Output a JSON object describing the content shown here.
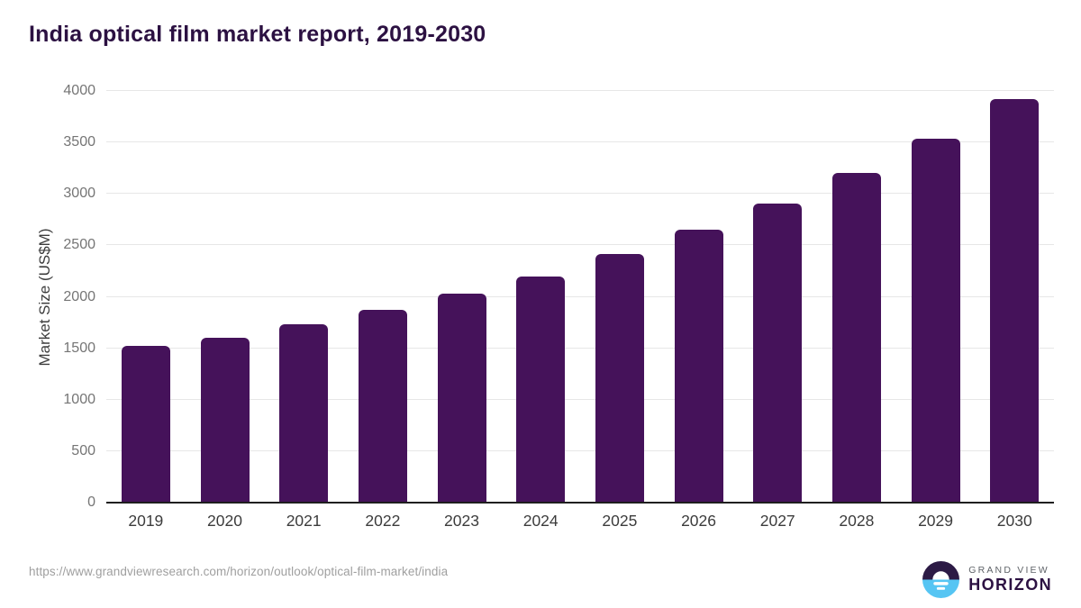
{
  "chart_data": {
    "type": "bar",
    "title": "India optical film market report, 2019-2030",
    "ylabel": "Market Size (US$M)",
    "xlabel": "",
    "categories": [
      "2019",
      "2020",
      "2021",
      "2022",
      "2023",
      "2024",
      "2025",
      "2026",
      "2027",
      "2028",
      "2029",
      "2030"
    ],
    "values": [
      1520,
      1605,
      1730,
      1870,
      2030,
      2200,
      2415,
      2650,
      2905,
      3200,
      3540,
      3920
    ],
    "ylim": [
      0,
      4000
    ],
    "yticks": [
      0,
      500,
      1000,
      1500,
      2000,
      2500,
      3000,
      3500,
      4000
    ],
    "grid": true,
    "legend_position": "none",
    "bar_color": "#45125a"
  },
  "footer": {
    "source_url": "https://www.grandviewresearch.com/horizon/outlook/optical-film-market/india",
    "logo": {
      "brand_top": "GRAND VIEW",
      "brand_bottom": "HORIZON"
    }
  },
  "colors": {
    "title": "#2c1142",
    "bar": "#45125a",
    "gridline": "#e7e7e7",
    "axis_line": "#1f1f1f",
    "y_tick_label": "#757575",
    "x_tick_label": "#3c3c3c",
    "source_url": "#9f9f9f",
    "logo_purple": "#2c1a45",
    "logo_blue": "#56c5f3",
    "background": "#ffffff"
  }
}
